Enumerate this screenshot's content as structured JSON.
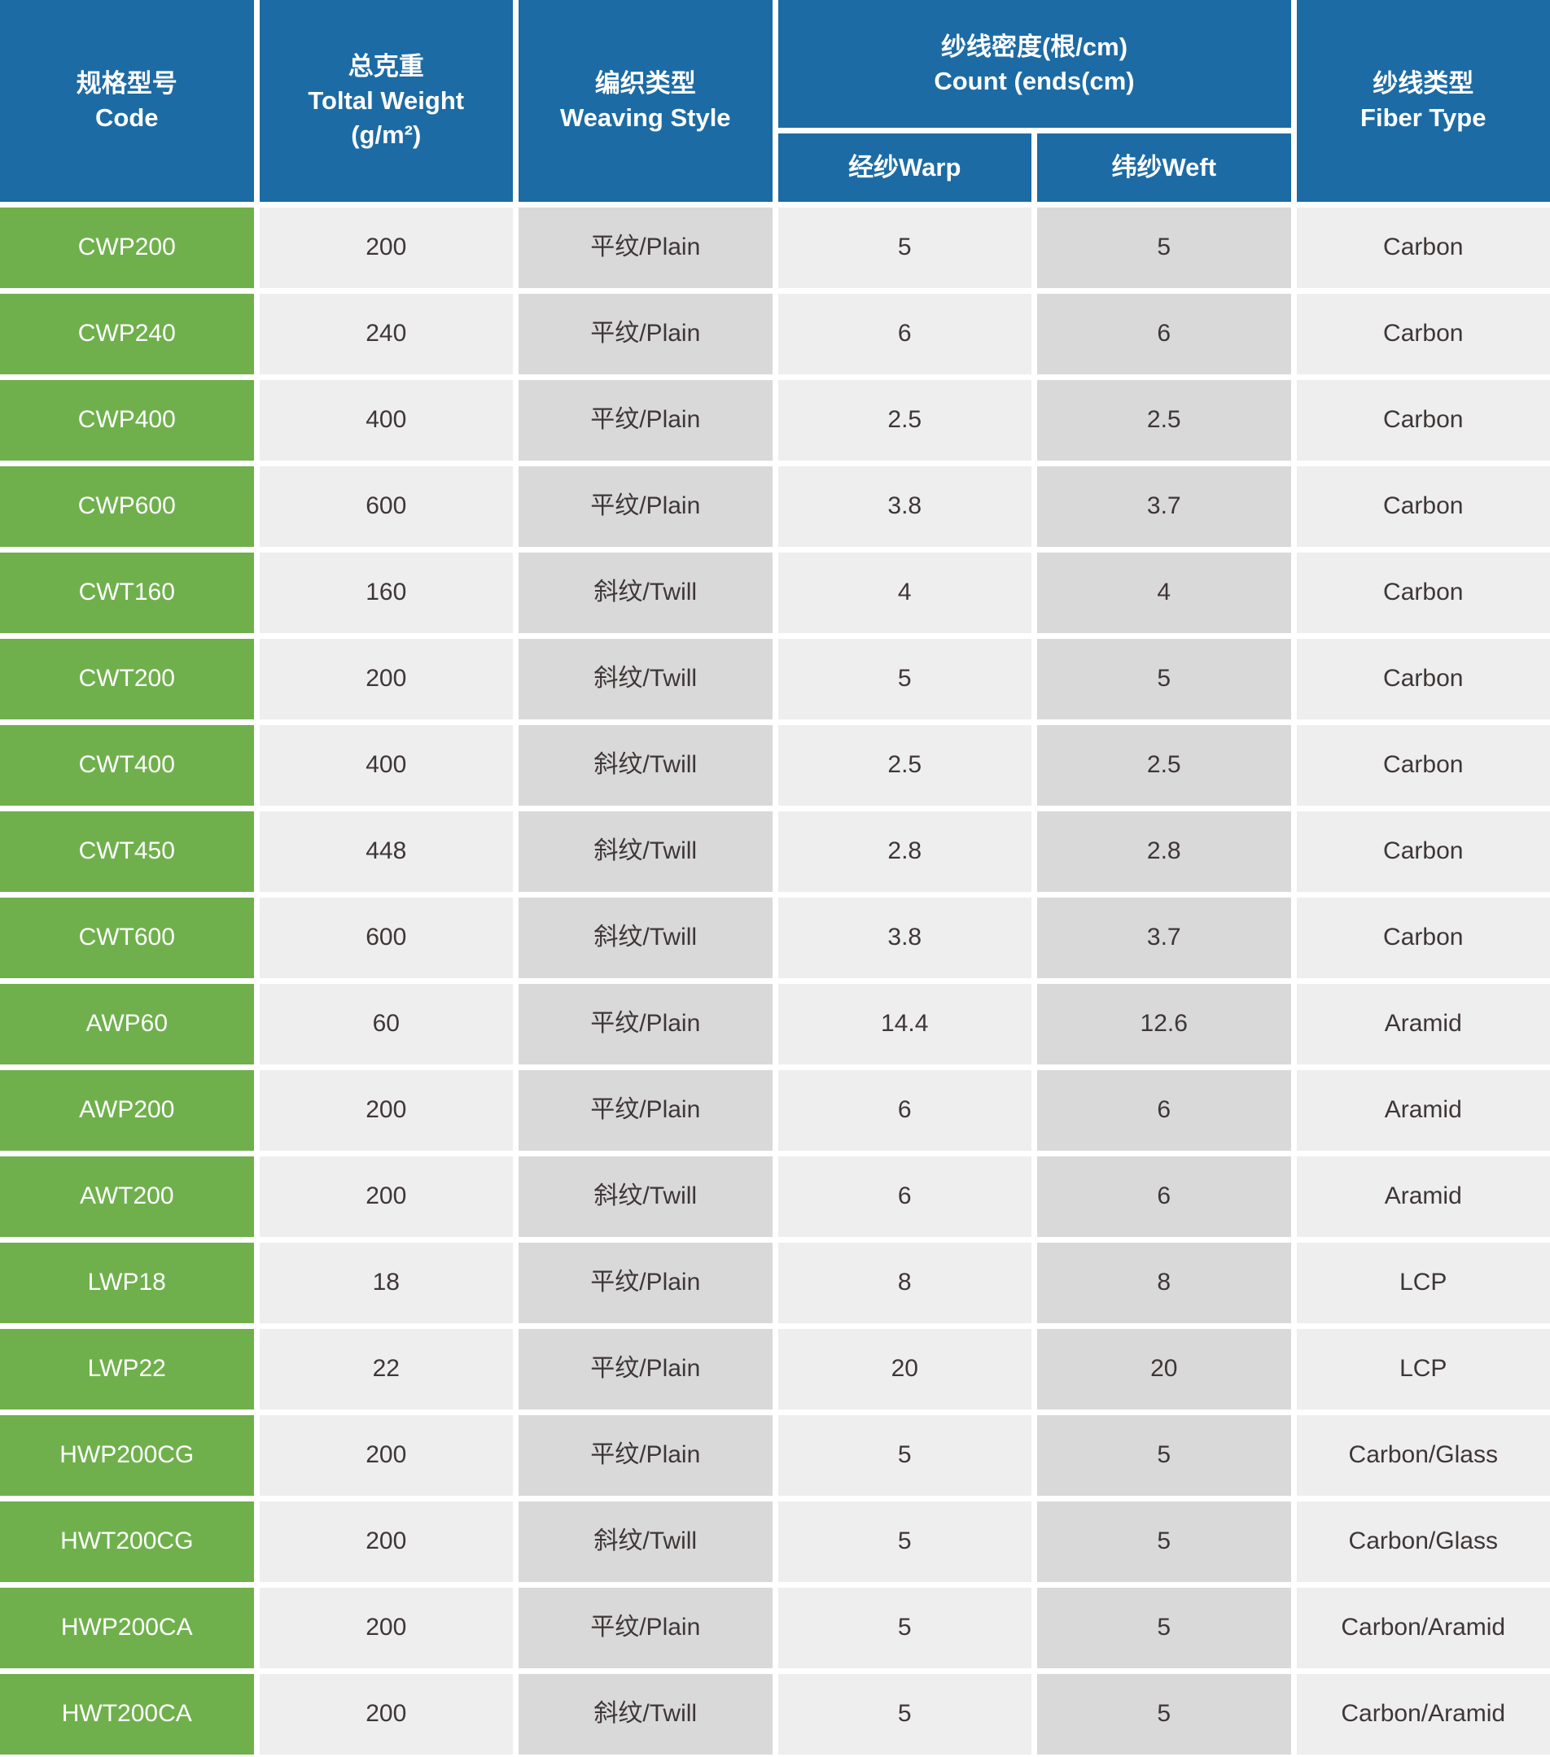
{
  "table": {
    "colors": {
      "header_blue": "#1c6ba4",
      "code_green": "#6fb04c",
      "cell_light_gray": "#eeeeee",
      "cell_dark_gray": "#d9d9d9",
      "data_text": "#3e3637"
    },
    "header": {
      "code_zh": "规格型号",
      "code_en": "Code",
      "weight_zh": "总克重",
      "weight_en": "Toltal Weight",
      "weight_unit": "(g/m²)",
      "weaving_zh": "编织类型",
      "weaving_en": "Weaving Style",
      "count_zh": "纱线密度(根/cm)",
      "count_en": "Count (ends(cm)",
      "warp": "经纱Warp",
      "weft": "纬纱Weft",
      "fiber_zh": "纱线类型",
      "fiber_en": "Fiber Type"
    },
    "rows": [
      {
        "code": "CWP200",
        "weight": "200",
        "weaving": "平纹/Plain",
        "warp": "5",
        "weft": "5",
        "fiber": "Carbon"
      },
      {
        "code": "CWP240",
        "weight": "240",
        "weaving": "平纹/Plain",
        "warp": "6",
        "weft": "6",
        "fiber": "Carbon"
      },
      {
        "code": "CWP400",
        "weight": "400",
        "weaving": "平纹/Plain",
        "warp": "2.5",
        "weft": "2.5",
        "fiber": "Carbon"
      },
      {
        "code": "CWP600",
        "weight": "600",
        "weaving": "平纹/Plain",
        "warp": "3.8",
        "weft": "3.7",
        "fiber": "Carbon"
      },
      {
        "code": "CWT160",
        "weight": "160",
        "weaving": "斜纹/Twill",
        "warp": "4",
        "weft": "4",
        "fiber": "Carbon"
      },
      {
        "code": "CWT200",
        "weight": "200",
        "weaving": "斜纹/Twill",
        "warp": "5",
        "weft": "5",
        "fiber": "Carbon"
      },
      {
        "code": "CWT400",
        "weight": "400",
        "weaving": "斜纹/Twill",
        "warp": "2.5",
        "weft": "2.5",
        "fiber": "Carbon"
      },
      {
        "code": "CWT450",
        "weight": "448",
        "weaving": "斜纹/Twill",
        "warp": "2.8",
        "weft": "2.8",
        "fiber": "Carbon"
      },
      {
        "code": "CWT600",
        "weight": "600",
        "weaving": "斜纹/Twill",
        "warp": "3.8",
        "weft": "3.7",
        "fiber": "Carbon"
      },
      {
        "code": "AWP60",
        "weight": "60",
        "weaving": "平纹/Plain",
        "warp": "14.4",
        "weft": "12.6",
        "fiber": "Aramid"
      },
      {
        "code": "AWP200",
        "weight": "200",
        "weaving": "平纹/Plain",
        "warp": "6",
        "weft": "6",
        "fiber": "Aramid"
      },
      {
        "code": "AWT200",
        "weight": "200",
        "weaving": "斜纹/Twill",
        "warp": "6",
        "weft": "6",
        "fiber": "Aramid"
      },
      {
        "code": "LWP18",
        "weight": "18",
        "weaving": "平纹/Plain",
        "warp": "8",
        "weft": "8",
        "fiber": "LCP"
      },
      {
        "code": "LWP22",
        "weight": "22",
        "weaving": "平纹/Plain",
        "warp": "20",
        "weft": "20",
        "fiber": "LCP"
      },
      {
        "code": "HWP200CG",
        "weight": "200",
        "weaving": "平纹/Plain",
        "warp": "5",
        "weft": "5",
        "fiber": "Carbon/Glass"
      },
      {
        "code": "HWT200CG",
        "weight": "200",
        "weaving": "斜纹/Twill",
        "warp": "5",
        "weft": "5",
        "fiber": "Carbon/Glass"
      },
      {
        "code": "HWP200CA",
        "weight": "200",
        "weaving": "平纹/Plain",
        "warp": "5",
        "weft": "5",
        "fiber": "Carbon/Aramid"
      },
      {
        "code": "HWT200CA",
        "weight": "200",
        "weaving": "斜纹/Twill",
        "warp": "5",
        "weft": "5",
        "fiber": "Carbon/Aramid"
      }
    ]
  }
}
